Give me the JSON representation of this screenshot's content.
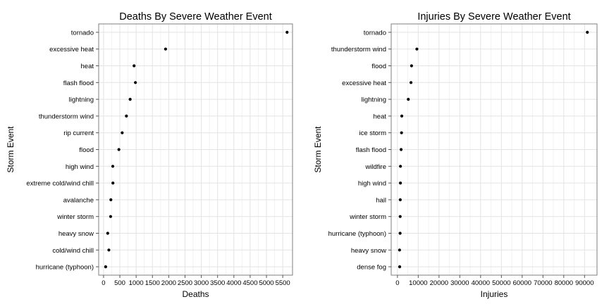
{
  "chart_data": [
    {
      "type": "scatter",
      "title": "Deaths By Severe Weather Event",
      "xlabel": "Deaths",
      "ylabel": "Storm Event",
      "xlim": [
        -150,
        5800
      ],
      "xticks": [
        0,
        500,
        1000,
        1500,
        2000,
        2500,
        3000,
        3500,
        4000,
        4500,
        5000,
        5500
      ],
      "xtick_labels": [
        "0",
        "500",
        "1000",
        "1500",
        "2000",
        "2500",
        "3000",
        "3500",
        "4000",
        "4500",
        "5000",
        "5500"
      ],
      "grid": true,
      "categories": [
        "tornado",
        "excessive heat",
        "heat",
        "flash flood",
        "lightning",
        "thunderstorm wind",
        "rip current",
        "flood",
        "high wind",
        "extreme cold/wind chill",
        "avalanche",
        "winter storm",
        "heavy snow",
        "cold/wind chill",
        "hurricane (typhoon)"
      ],
      "values": [
        5633,
        1903,
        937,
        978,
        816,
        701,
        572,
        470,
        283,
        287,
        224,
        216,
        127,
        162,
        64
      ]
    },
    {
      "type": "scatter",
      "title": "Injuries By Severe Weather Event",
      "xlabel": "Injuries",
      "ylabel": "Storm Event",
      "xlim": [
        -3000,
        96000
      ],
      "xticks": [
        0,
        10000,
        20000,
        30000,
        40000,
        50000,
        60000,
        70000,
        80000,
        90000
      ],
      "xtick_labels": [
        "0",
        "10000",
        "20000",
        "30000",
        "40000",
        "50000",
        "60000",
        "70000",
        "80000",
        "90000"
      ],
      "grid": true,
      "categories": [
        "tornado",
        "thunderstorm wind",
        "flood",
        "excessive heat",
        "lightning",
        "heat",
        "ice storm",
        "flash flood",
        "wildfire",
        "high wind",
        "hail",
        "winter storm",
        "hurricane (typhoon)",
        "heavy snow",
        "dense fog"
      ],
      "values": [
        91346,
        9353,
        6791,
        6525,
        5230,
        2100,
        1975,
        1777,
        1456,
        1439,
        1361,
        1321,
        1275,
        1021,
        1077
      ]
    }
  ]
}
